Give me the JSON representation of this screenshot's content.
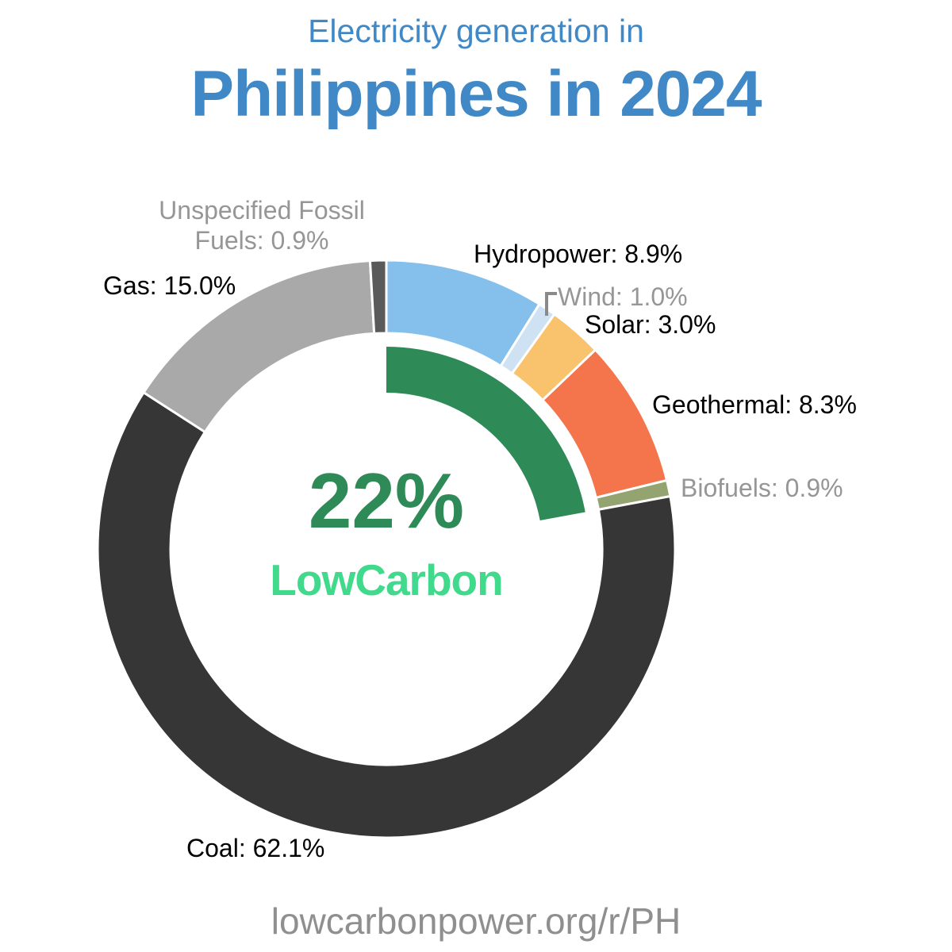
{
  "header": {
    "subtitle": "Electricity generation in",
    "title": "Philippines in 2024",
    "title_color": "#4189C6"
  },
  "footer": {
    "url": "lowcarbonpower.org/r/PH"
  },
  "chart_data": {
    "type": "pie",
    "variant": "donut",
    "title": "Electricity generation in Philippines in 2024",
    "units": "%",
    "start_angle_deg": 0,
    "direction": "clockwise",
    "legend_position": "around-chart",
    "segments": [
      {
        "id": "hydropower",
        "name": "Hydropower",
        "value": 8.9,
        "label": "Hydropower: 8.9%",
        "color": "#85BFEC",
        "low_carbon": true,
        "label_color": "#000000"
      },
      {
        "id": "wind",
        "name": "Wind",
        "value": 1.0,
        "label": "Wind: 1.0%",
        "color": "#CFE2F3",
        "low_carbon": true,
        "label_color": "#969696"
      },
      {
        "id": "solar",
        "name": "Solar",
        "value": 3.0,
        "label": "Solar: 3.0%",
        "color": "#F9C26C",
        "low_carbon": true,
        "label_color": "#000000"
      },
      {
        "id": "geothermal",
        "name": "Geothermal",
        "value": 8.3,
        "label": "Geothermal: 8.3%",
        "color": "#F4744B",
        "low_carbon": true,
        "label_color": "#000000"
      },
      {
        "id": "biofuels",
        "name": "Biofuels",
        "value": 0.9,
        "label": "Biofuels: 0.9%",
        "color": "#94A470",
        "low_carbon": true,
        "label_color": "#969696"
      },
      {
        "id": "coal",
        "name": "Coal",
        "value": 62.1,
        "label": "Coal: 62.1%",
        "color": "#363636",
        "low_carbon": false,
        "label_color": "#000000"
      },
      {
        "id": "gas",
        "name": "Gas",
        "value": 15.0,
        "label": "Gas: 15.0%",
        "color": "#A9A9A9",
        "low_carbon": false,
        "label_color": "#000000"
      },
      {
        "id": "unspecified_fossil_fuels",
        "name": "Unspecified Fossil Fuels",
        "value": 0.9,
        "label": "Unspecified Fossil Fuels: 0.9%",
        "color": "#5A5A5A",
        "low_carbon": false,
        "label_color": "#969696"
      }
    ],
    "center": {
      "value": "22%",
      "label": "LowCarbon",
      "value_color": "#2E8B57",
      "label_color": "#41D98B"
    },
    "lowcarbon_arc": {
      "span_pct": 22.1,
      "color": "#2E8B57"
    }
  }
}
